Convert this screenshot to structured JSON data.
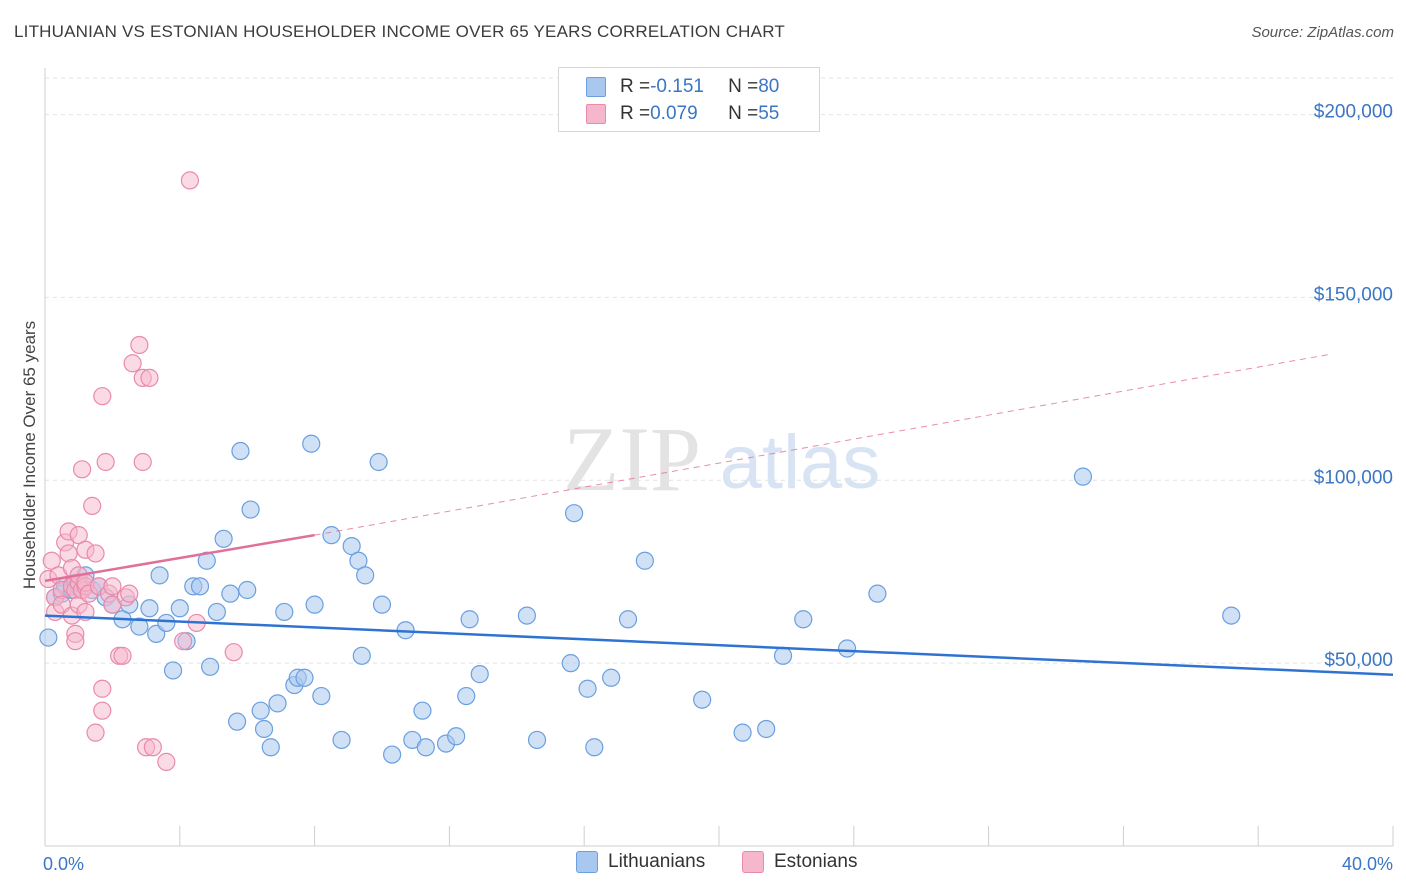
{
  "chart_data": {
    "type": "scatter",
    "title": "LITHUANIAN VS ESTONIAN HOUSEHOLDER INCOME OVER 65 YEARS CORRELATION CHART",
    "source": "Source: ZipAtlas.com",
    "xlabel": "",
    "ylabel": "Householder Income Over 65 years",
    "xlim": [
      0,
      40
    ],
    "ylim": [
      0,
      210000
    ],
    "x_tick_labels": {
      "left": "0.0%",
      "right": "40.0%"
    },
    "y_ticks": [
      {
        "value": 200000,
        "label": "$200,000"
      },
      {
        "value": 150000,
        "label": "$150,000"
      },
      {
        "value": 100000,
        "label": "$100,000"
      },
      {
        "value": 50000,
        "label": "$50,000"
      }
    ],
    "watermark": {
      "zip": "ZIP",
      "atlas": "atlas"
    },
    "colors": {
      "lithuanians_fill": "#a9c8ef",
      "lithuanians_stroke": "#6a9fe0",
      "lithuanians_line": "#2f73d2",
      "estonians_fill": "#f5b7cb",
      "estonians_stroke": "#e98aaa",
      "estonians_line": "#e0709a"
    },
    "legend": [
      {
        "r_label": "R = ",
        "r_value": "-0.151",
        "n_label": "N = ",
        "n_value": "80"
      },
      {
        "r_label": "R = ",
        "r_value": "0.079",
        "n_label": "N = ",
        "n_value": "55"
      }
    ],
    "series": [
      {
        "name": "Lithuanians",
        "trend": {
          "x0": 0,
          "y0": 63000,
          "x1": 42,
          "y1": 46000
        },
        "points": [
          [
            0.1,
            57000
          ],
          [
            0.3,
            68000
          ],
          [
            0.5,
            69000
          ],
          [
            0.6,
            71000
          ],
          [
            0.8,
            70000
          ],
          [
            0.9,
            72000
          ],
          [
            1.0,
            71000
          ],
          [
            1.2,
            74000
          ],
          [
            1.4,
            70000
          ],
          [
            1.6,
            71000
          ],
          [
            1.8,
            68000
          ],
          [
            2.0,
            66000
          ],
          [
            2.3,
            62000
          ],
          [
            2.5,
            66000
          ],
          [
            2.8,
            60000
          ],
          [
            3.1,
            65000
          ],
          [
            3.3,
            58000
          ],
          [
            3.4,
            74000
          ],
          [
            3.6,
            61000
          ],
          [
            3.8,
            48000
          ],
          [
            4.0,
            65000
          ],
          [
            4.2,
            56000
          ],
          [
            4.4,
            71000
          ],
          [
            4.6,
            71000
          ],
          [
            4.8,
            78000
          ],
          [
            4.9,
            49000
          ],
          [
            5.1,
            64000
          ],
          [
            5.3,
            84000
          ],
          [
            5.5,
            69000
          ],
          [
            5.7,
            34000
          ],
          [
            5.8,
            108000
          ],
          [
            6.0,
            70000
          ],
          [
            6.1,
            92000
          ],
          [
            6.4,
            37000
          ],
          [
            6.5,
            32000
          ],
          [
            6.7,
            27000
          ],
          [
            6.9,
            39000
          ],
          [
            7.1,
            64000
          ],
          [
            7.4,
            44000
          ],
          [
            7.5,
            46000
          ],
          [
            7.7,
            46000
          ],
          [
            7.9,
            110000
          ],
          [
            8.0,
            66000
          ],
          [
            8.2,
            41000
          ],
          [
            8.5,
            85000
          ],
          [
            8.8,
            29000
          ],
          [
            9.1,
            82000
          ],
          [
            9.3,
            78000
          ],
          [
            9.4,
            52000
          ],
          [
            9.5,
            74000
          ],
          [
            9.9,
            105000
          ],
          [
            10.0,
            66000
          ],
          [
            10.3,
            25000
          ],
          [
            10.7,
            59000
          ],
          [
            10.9,
            29000
          ],
          [
            11.2,
            37000
          ],
          [
            11.3,
            27000
          ],
          [
            11.9,
            28000
          ],
          [
            12.2,
            30000
          ],
          [
            12.6,
            62000
          ],
          [
            12.5,
            41000
          ],
          [
            12.9,
            47000
          ],
          [
            14.3,
            63000
          ],
          [
            14.6,
            29000
          ],
          [
            15.6,
            50000
          ],
          [
            15.7,
            91000
          ],
          [
            16.1,
            43000
          ],
          [
            16.3,
            27000
          ],
          [
            16.8,
            46000
          ],
          [
            17.3,
            62000
          ],
          [
            17.8,
            78000
          ],
          [
            19.5,
            40000
          ],
          [
            20.7,
            31000
          ],
          [
            21.4,
            32000
          ],
          [
            21.9,
            52000
          ],
          [
            22.5,
            62000
          ],
          [
            23.8,
            54000
          ],
          [
            24.7,
            69000
          ],
          [
            30.8,
            101000
          ],
          [
            35.2,
            63000
          ]
        ]
      },
      {
        "name": "Estonians",
        "trend": {
          "x0": 0,
          "y0": 72500,
          "x1": 8,
          "y1": 85000,
          "ext_x1": 40,
          "ext_y1": 136000
        },
        "points": [
          [
            0.1,
            73000
          ],
          [
            0.2,
            78000
          ],
          [
            0.3,
            68000
          ],
          [
            0.3,
            64000
          ],
          [
            0.4,
            74000
          ],
          [
            0.5,
            70000
          ],
          [
            0.5,
            66000
          ],
          [
            0.6,
            83000
          ],
          [
            0.7,
            86000
          ],
          [
            0.7,
            80000
          ],
          [
            0.8,
            76000
          ],
          [
            0.8,
            71000
          ],
          [
            0.8,
            63000
          ],
          [
            0.9,
            58000
          ],
          [
            0.9,
            56000
          ],
          [
            0.9,
            70000
          ],
          [
            1.0,
            72000
          ],
          [
            1.0,
            66000
          ],
          [
            1.0,
            85000
          ],
          [
            1.0,
            74000
          ],
          [
            1.1,
            70000
          ],
          [
            1.1,
            70000
          ],
          [
            1.1,
            103000
          ],
          [
            1.2,
            71000
          ],
          [
            1.2,
            64000
          ],
          [
            1.2,
            72000
          ],
          [
            1.2,
            81000
          ],
          [
            1.3,
            69000
          ],
          [
            1.4,
            93000
          ],
          [
            1.5,
            31000
          ],
          [
            1.5,
            80000
          ],
          [
            1.6,
            71000
          ],
          [
            1.7,
            37000
          ],
          [
            1.7,
            43000
          ],
          [
            1.7,
            123000
          ],
          [
            1.8,
            105000
          ],
          [
            1.9,
            69000
          ],
          [
            2.0,
            71000
          ],
          [
            2.0,
            66000
          ],
          [
            2.2,
            52000
          ],
          [
            2.3,
            52000
          ],
          [
            2.4,
            68000
          ],
          [
            2.5,
            69000
          ],
          [
            2.6,
            132000
          ],
          [
            2.8,
            137000
          ],
          [
            2.9,
            105000
          ],
          [
            2.9,
            128000
          ],
          [
            3.0,
            27000
          ],
          [
            3.1,
            128000
          ],
          [
            3.2,
            27000
          ],
          [
            3.6,
            23000
          ],
          [
            4.1,
            56000
          ],
          [
            4.3,
            182000
          ],
          [
            4.5,
            61000
          ],
          [
            5.6,
            53000
          ]
        ]
      }
    ]
  }
}
